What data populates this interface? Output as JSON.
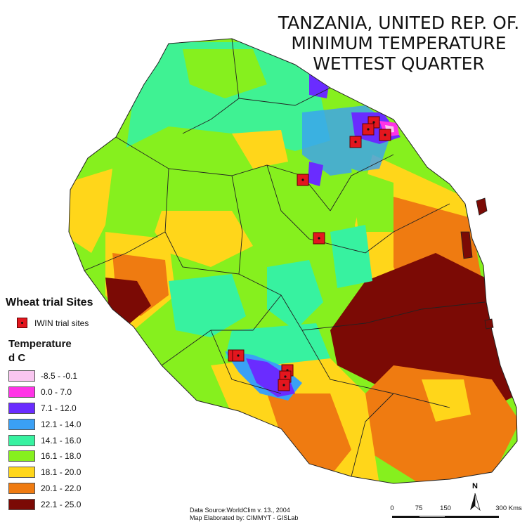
{
  "title": {
    "line1": "TANZANIA, UNITED REP. OF.",
    "line2": "MINIMUM  TEMPERATURE",
    "line3": "WETTEST QUARTER"
  },
  "legend": {
    "sites_heading": "Wheat trial Sites",
    "site_label": "IWIN trial sites",
    "temperature_heading": "Temperature",
    "unit": "d C",
    "classes": [
      {
        "label": "-8.5 - -0.1",
        "color": "#f9c6f0"
      },
      {
        "label": "0.0 - 7.0",
        "color": "#ff33e6"
      },
      {
        "label": "7.1 - 12.0",
        "color": "#6a2cff"
      },
      {
        "label": "12.1 - 14.0",
        "color": "#3aa0f5"
      },
      {
        "label": "14.1 - 16.0",
        "color": "#37f2a0"
      },
      {
        "label": "16.1 - 18.0",
        "color": "#86f01e"
      },
      {
        "label": "18.1 - 20.0",
        "color": "#ffd61a"
      },
      {
        "label": "20.1 - 22.0",
        "color": "#ef7b11"
      },
      {
        "label": "22.1 - 25.0",
        "color": "#7b0a05"
      }
    ]
  },
  "credits": {
    "line1": "Data Source:WorldClim v. 13., 2004",
    "line2": "Map Elaborated by: CIMMYT - GISLab"
  },
  "scale_bar": {
    "labels": [
      "0",
      "75",
      "150",
      "300 Kms"
    ]
  },
  "north_arrow": {
    "label": "N"
  }
}
